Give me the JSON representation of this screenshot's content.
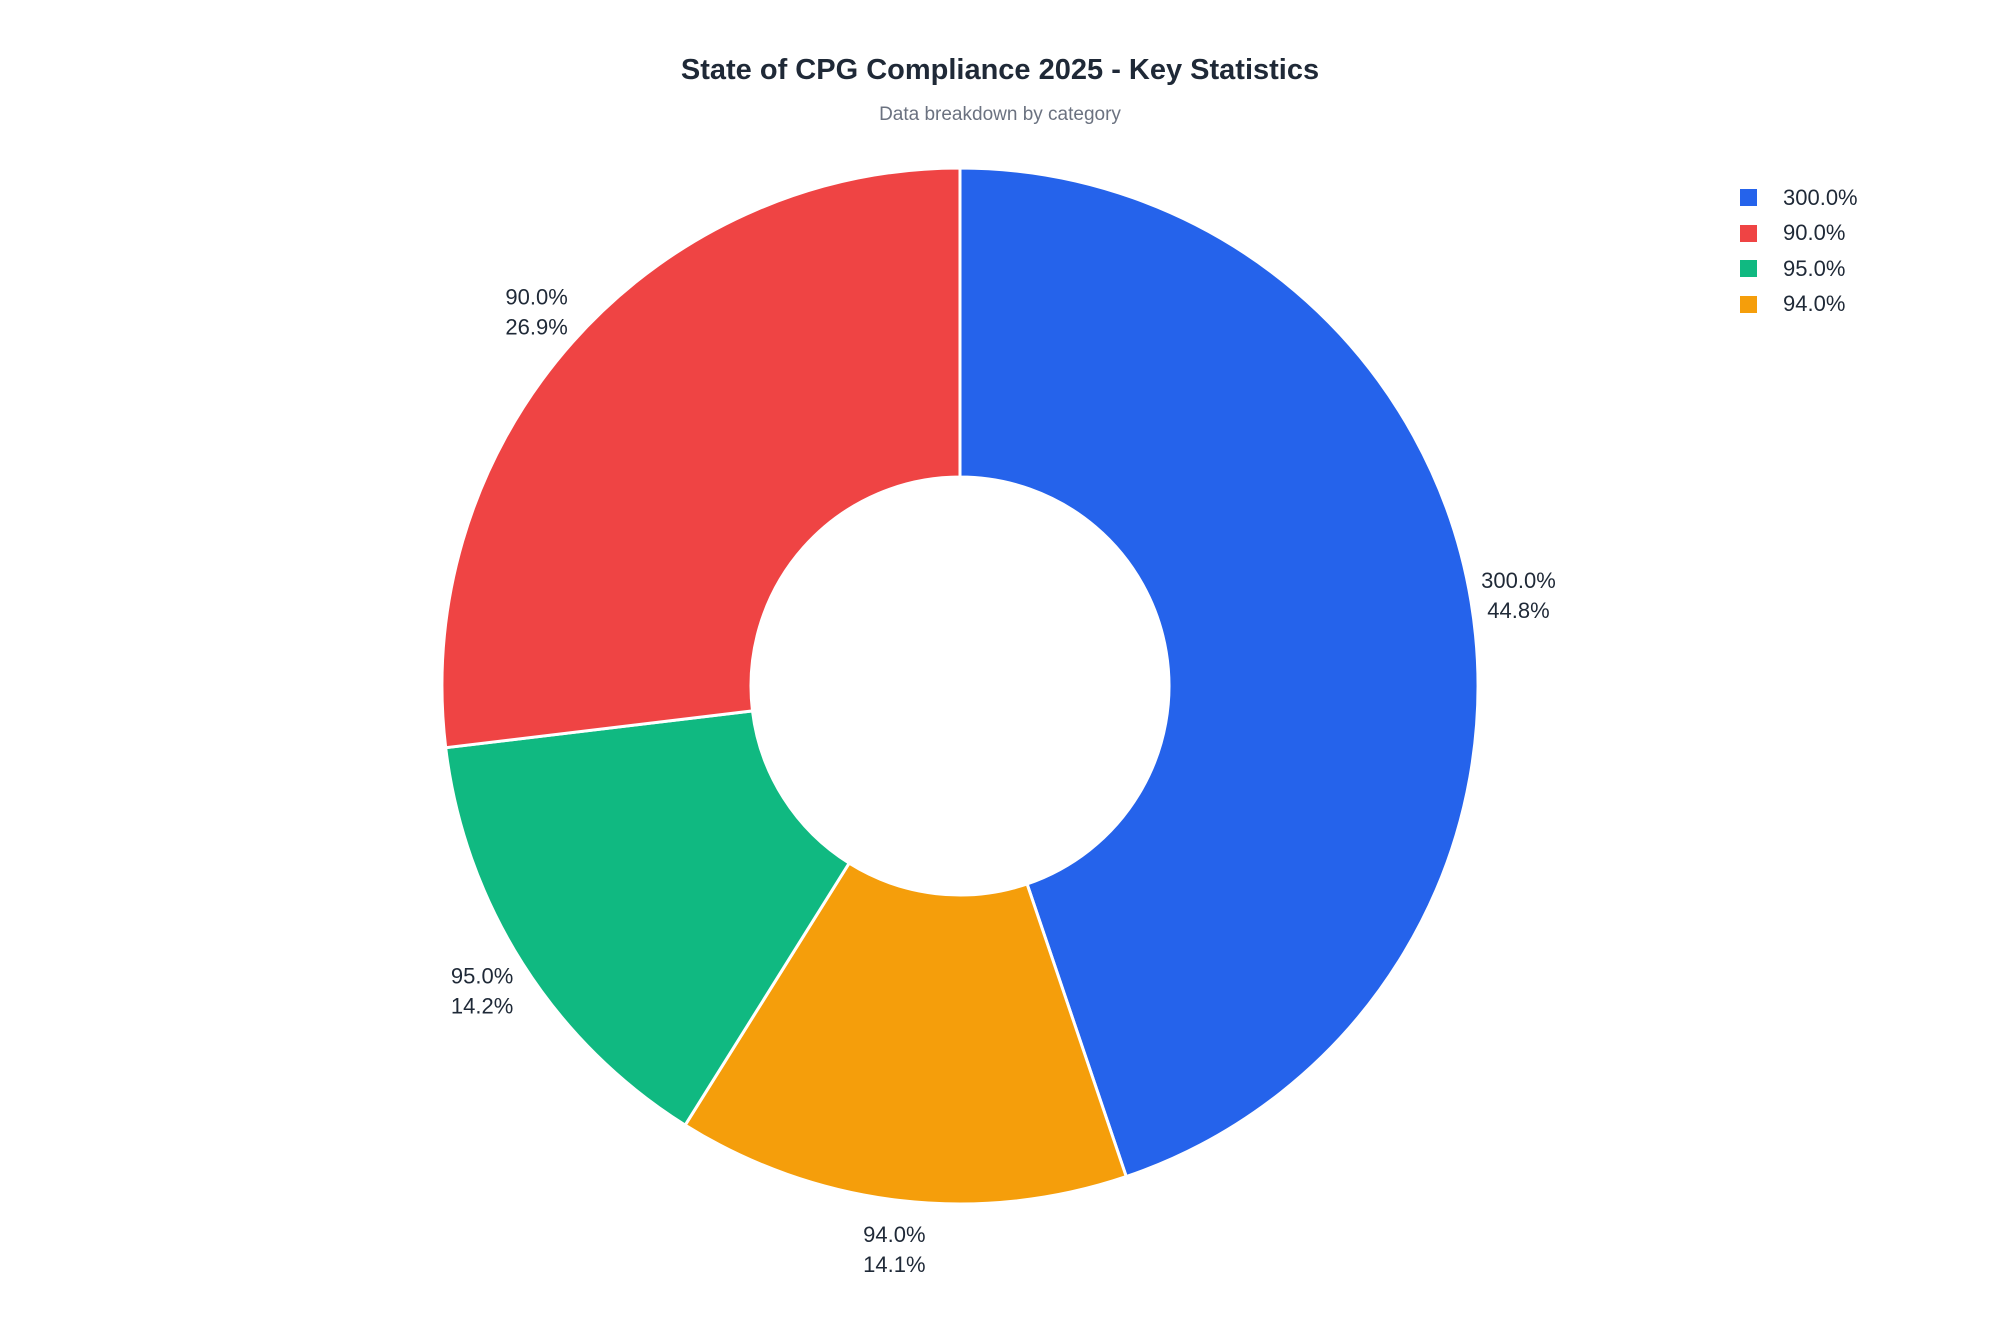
{
  "chart_data": {
    "type": "pie",
    "hole": 0.4,
    "title": "State of CPG Compliance 2025 - Key Statistics",
    "subtitle": "Data breakdown by category",
    "legend_position": "top-right",
    "direction": "clockwise",
    "slices": [
      {
        "label": "300.0%",
        "percent": 44.8,
        "percent_label": "44.8%",
        "color": "#2563eb"
      },
      {
        "label": "94.0%",
        "percent": 14.1,
        "percent_label": "14.1%",
        "color": "#f59e0b"
      },
      {
        "label": "95.0%",
        "percent": 14.2,
        "percent_label": "14.2%",
        "color": "#10b981"
      },
      {
        "label": "90.0%",
        "percent": 26.9,
        "percent_label": "26.9%",
        "color": "#ef4444"
      }
    ],
    "legend": [
      {
        "label": "300.0%",
        "color": "#2563eb"
      },
      {
        "label": "90.0%",
        "color": "#ef4444"
      },
      {
        "label": "95.0%",
        "color": "#10b981"
      },
      {
        "label": "94.0%",
        "color": "#f59e0b"
      }
    ]
  }
}
